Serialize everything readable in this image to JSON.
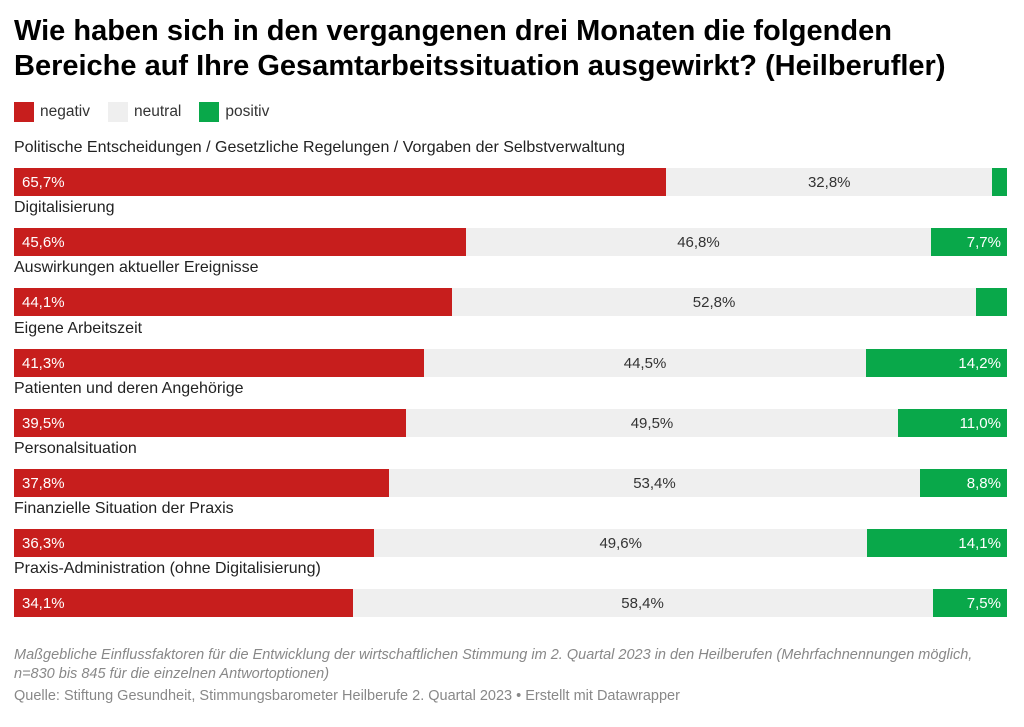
{
  "title": "Wie haben sich in den vergangenen drei Monaten die folgenden Bereiche auf Ihre Gesamtarbeitssituation ausgewirkt? (Heilberufler)",
  "colors": {
    "negativ": "#c71e1d",
    "neutral": "#efefef",
    "positiv": "#09a84a"
  },
  "legend": [
    {
      "key": "negativ",
      "label": "negativ"
    },
    {
      "key": "neutral",
      "label": "neutral"
    },
    {
      "key": "positiv",
      "label": "positiv"
    }
  ],
  "note": "Maßgebliche Einflussfaktoren für die Entwicklung der wirtschaftlichen Stimmung im 2. Quartal 2023 in den Heilberufen (Mehrfachnennungen möglich, n=830 bis 845 für die einzelnen Antwortoptionen)",
  "source": "Quelle: Stiftung Gesundheit, Stimmungsbarometer Heilberufe 2. Quartal 2023 • Erstellt mit Datawrapper",
  "chart_data": {
    "type": "bar",
    "orientation": "horizontal",
    "stacked": "100%",
    "categories": [
      "Politische Entscheidungen / Gesetzliche Regelungen / Vorgaben der Selbstverwaltung",
      "Digitalisierung",
      "Auswirkungen aktueller Ereignisse",
      "Eigene Arbeitszeit",
      "Patienten und deren Angehörige",
      "Personalsituation",
      "Finanzielle Situation der Praxis",
      "Praxis-Administration (ohne Digitalisierung)"
    ],
    "series": [
      {
        "name": "negativ",
        "values": [
          65.7,
          45.6,
          44.1,
          41.3,
          39.5,
          37.8,
          36.3,
          34.1
        ],
        "labels": [
          "65,7%",
          "45,6%",
          "44,1%",
          "41,3%",
          "39,5%",
          "37,8%",
          "36,3%",
          "34,1%"
        ]
      },
      {
        "name": "neutral",
        "values": [
          32.8,
          46.8,
          52.8,
          44.5,
          49.5,
          53.4,
          49.6,
          58.4
        ],
        "labels": [
          "32,8%",
          "46,8%",
          "52,8%",
          "44,5%",
          "49,5%",
          "53,4%",
          "49,6%",
          "58,4%"
        ]
      },
      {
        "name": "positiv",
        "values": [
          1.5,
          7.7,
          3.1,
          14.2,
          11.0,
          8.8,
          14.1,
          7.5
        ],
        "labels": [
          "",
          "7,7%",
          "",
          "14,2%",
          "11,0%",
          "8,8%",
          "14,1%",
          "7,5%"
        ]
      }
    ],
    "xlim": [
      0,
      100
    ],
    "legend_position": "top-left",
    "grid": false
  }
}
